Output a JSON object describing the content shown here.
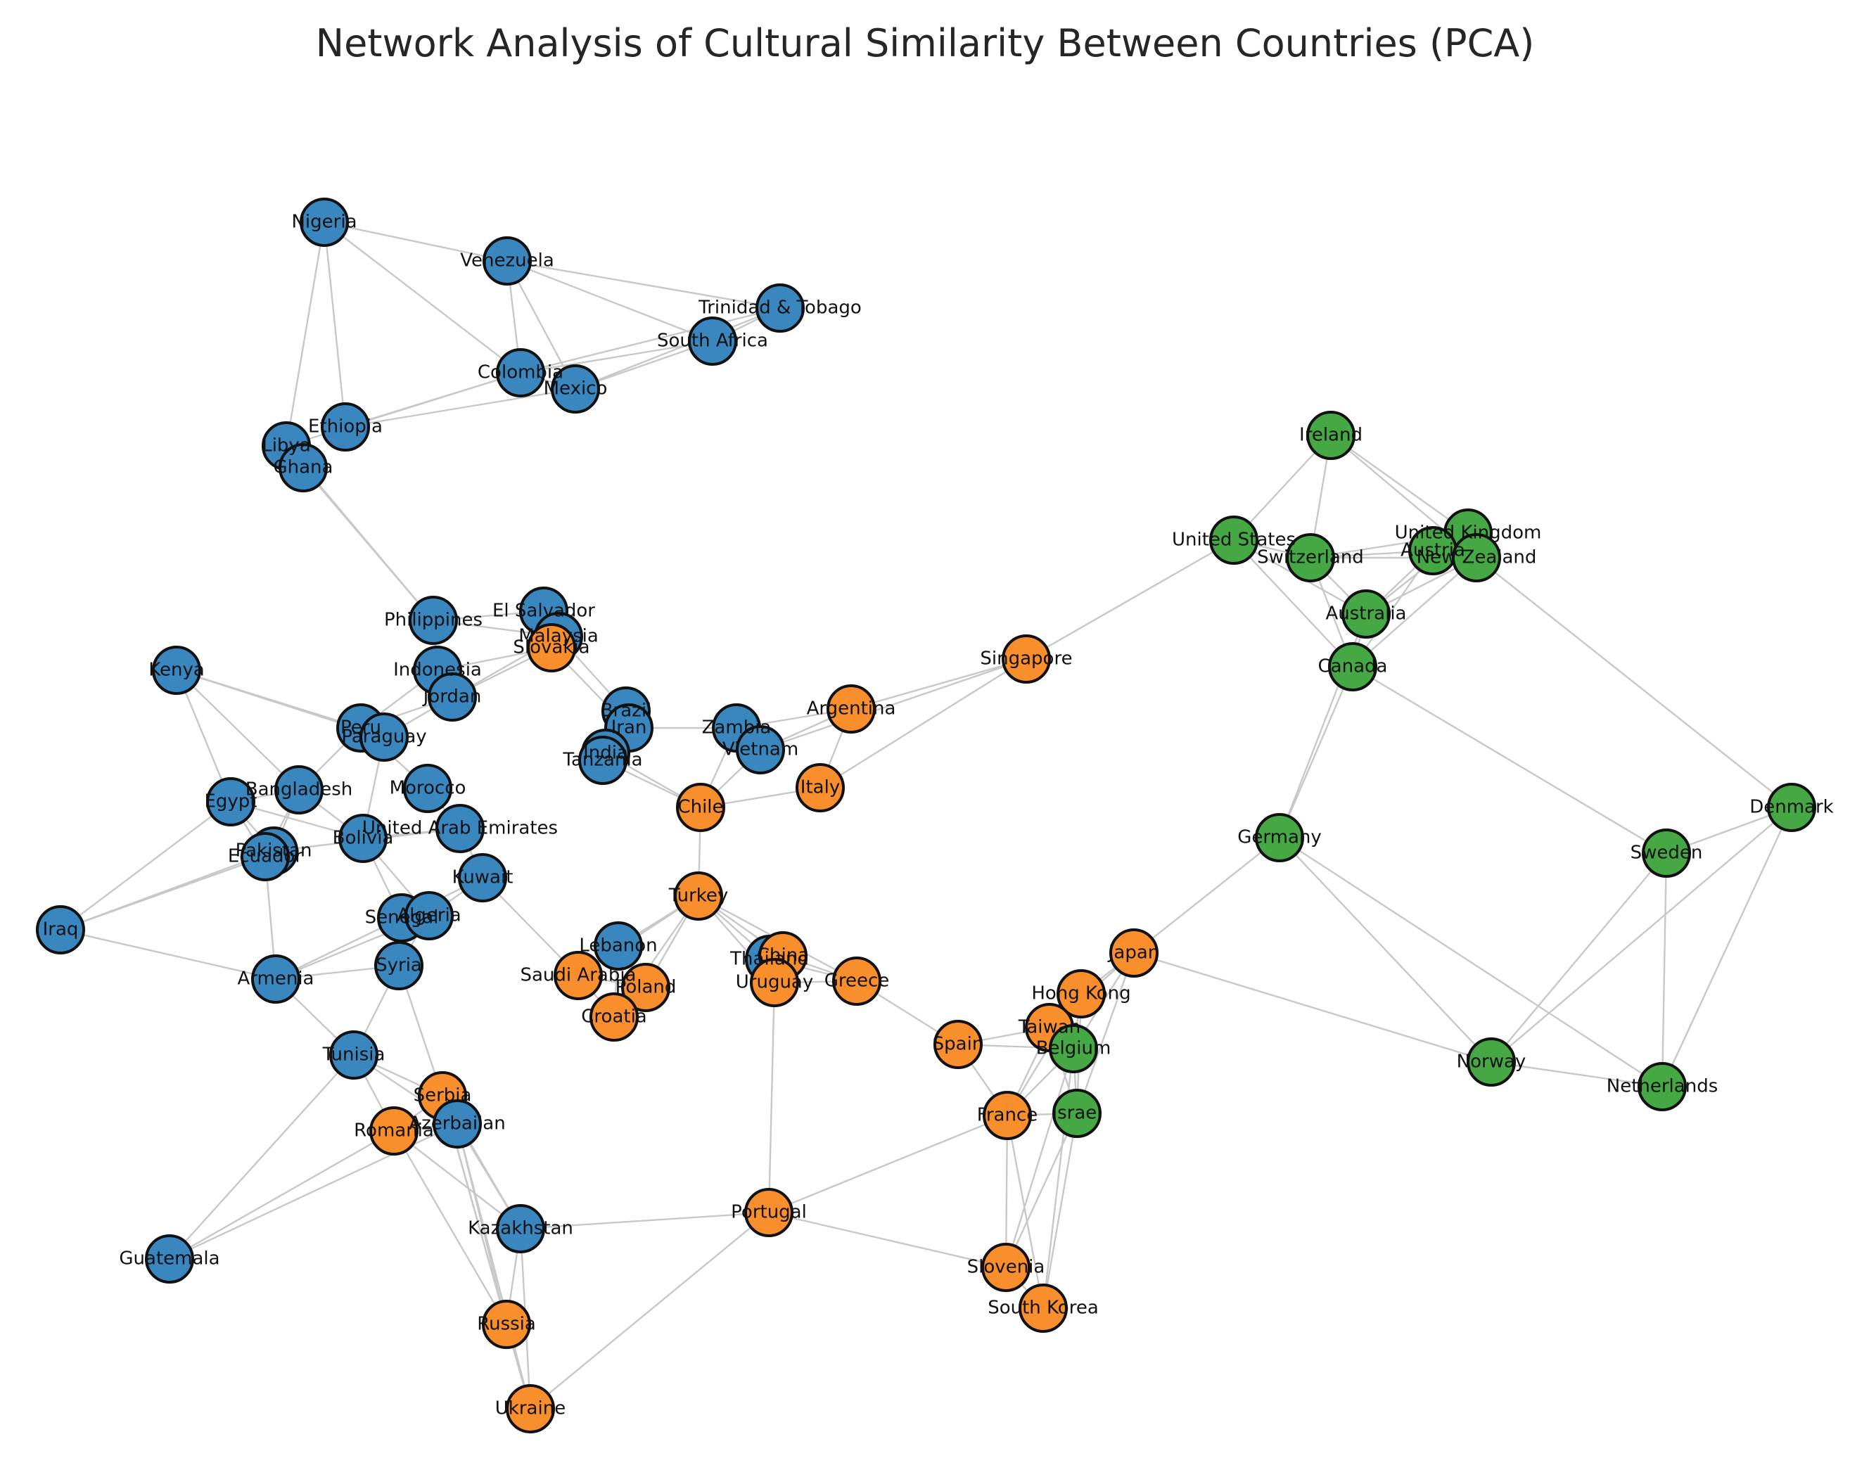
{
  "title": "Network Analysis of Cultural Similarity Between Countries (PCA)",
  "colors": {
    "0": "#3a86bf",
    "1": "#f98f2c",
    "2": "#46a845"
  },
  "chart_data": {
    "type": "network",
    "nodes": [
      {
        "id": "Nigeria",
        "group": 0
      },
      {
        "id": "Venezuela",
        "group": 0
      },
      {
        "id": "Trinidad & Tobago",
        "group": 0
      },
      {
        "id": "South Africa",
        "group": 0
      },
      {
        "id": "Colombia",
        "group": 0
      },
      {
        "id": "Mexico",
        "group": 0
      },
      {
        "id": "Ethiopia",
        "group": 0
      },
      {
        "id": "Libya",
        "group": 0
      },
      {
        "id": "Ghana",
        "group": 0
      },
      {
        "id": "Philippines",
        "group": 0
      },
      {
        "id": "El Salvador",
        "group": 0
      },
      {
        "id": "Malaysia",
        "group": 0
      },
      {
        "id": "Slovakia",
        "group": 1
      },
      {
        "id": "Kenya",
        "group": 0
      },
      {
        "id": "Indonesia",
        "group": 0
      },
      {
        "id": "Jordan",
        "group": 0
      },
      {
        "id": "Peru",
        "group": 0
      },
      {
        "id": "Paraguay",
        "group": 0
      },
      {
        "id": "Brazil",
        "group": 0
      },
      {
        "id": "Iran",
        "group": 0
      },
      {
        "id": "India",
        "group": 0
      },
      {
        "id": "Tanzania",
        "group": 0
      },
      {
        "id": "Zambia",
        "group": 0
      },
      {
        "id": "Vietnam",
        "group": 0
      },
      {
        "id": "Argentina",
        "group": 1
      },
      {
        "id": "Singapore",
        "group": 1
      },
      {
        "id": "Italy",
        "group": 1
      },
      {
        "id": "Chile",
        "group": 1
      },
      {
        "id": "Morocco",
        "group": 0
      },
      {
        "id": "Bangladesh",
        "group": 0
      },
      {
        "id": "Egypt",
        "group": 0
      },
      {
        "id": "United Arab Emirates",
        "group": 0
      },
      {
        "id": "Bolivia",
        "group": 0
      },
      {
        "id": "Pakistan",
        "group": 0
      },
      {
        "id": "Ecuador",
        "group": 0
      },
      {
        "id": "Kuwait",
        "group": 0
      },
      {
        "id": "Iraq",
        "group": 0
      },
      {
        "id": "Senegal",
        "group": 0
      },
      {
        "id": "Algeria",
        "group": 0
      },
      {
        "id": "Armenia",
        "group": 0
      },
      {
        "id": "Syria",
        "group": 0
      },
      {
        "id": "Turkey",
        "group": 1
      },
      {
        "id": "Lebanon",
        "group": 0
      },
      {
        "id": "Saudi Arabia",
        "group": 1
      },
      {
        "id": "Poland",
        "group": 1
      },
      {
        "id": "Croatia",
        "group": 1
      },
      {
        "id": "Thailand",
        "group": 0
      },
      {
        "id": "China",
        "group": 1
      },
      {
        "id": "Uruguay",
        "group": 1
      },
      {
        "id": "Greece",
        "group": 1
      },
      {
        "id": "Tunisia",
        "group": 0
      },
      {
        "id": "Serbia",
        "group": 1
      },
      {
        "id": "Romania",
        "group": 1
      },
      {
        "id": "Azerbaijan",
        "group": 0
      },
      {
        "id": "Kazakhstan",
        "group": 0
      },
      {
        "id": "Guatemala",
        "group": 0
      },
      {
        "id": "Russia",
        "group": 1
      },
      {
        "id": "Ukraine",
        "group": 1
      },
      {
        "id": "Portugal",
        "group": 1
      },
      {
        "id": "Spain",
        "group": 1
      },
      {
        "id": "Japan",
        "group": 1
      },
      {
        "id": "Hong Kong",
        "group": 1
      },
      {
        "id": "Taiwan",
        "group": 1
      },
      {
        "id": "Belgium",
        "group": 2
      },
      {
        "id": "France",
        "group": 1
      },
      {
        "id": "Israel",
        "group": 2
      },
      {
        "id": "Slovenia",
        "group": 1
      },
      {
        "id": "South Korea",
        "group": 1
      },
      {
        "id": "Ireland",
        "group": 2
      },
      {
        "id": "United States",
        "group": 2
      },
      {
        "id": "Switzerland",
        "group": 2
      },
      {
        "id": "United Kingdom",
        "group": 2
      },
      {
        "id": "Austria",
        "group": 2
      },
      {
        "id": "New Zealand",
        "group": 2
      },
      {
        "id": "Australia",
        "group": 2
      },
      {
        "id": "Canada",
        "group": 2
      },
      {
        "id": "Germany",
        "group": 2
      },
      {
        "id": "Denmark",
        "group": 2
      },
      {
        "id": "Sweden",
        "group": 2
      },
      {
        "id": "Norway",
        "group": 2
      },
      {
        "id": "Netherlands",
        "group": 2
      }
    ],
    "edges": [
      [
        "Nigeria",
        "Venezuela"
      ],
      [
        "Nigeria",
        "Colombia"
      ],
      [
        "Nigeria",
        "Ethiopia"
      ],
      [
        "Nigeria",
        "Libya"
      ],
      [
        "Venezuela",
        "Trinidad & Tobago"
      ],
      [
        "Venezuela",
        "Colombia"
      ],
      [
        "Venezuela",
        "Mexico"
      ],
      [
        "Venezuela",
        "South Africa"
      ],
      [
        "Trinidad & Tobago",
        "South Africa"
      ],
      [
        "Trinidad & Tobago",
        "Colombia"
      ],
      [
        "Trinidad & Tobago",
        "Mexico"
      ],
      [
        "South Africa",
        "Colombia"
      ],
      [
        "South Africa",
        "Mexico"
      ],
      [
        "Colombia",
        "Mexico"
      ],
      [
        "Colombia",
        "Ethiopia"
      ],
      [
        "Colombia",
        "Libya"
      ],
      [
        "Mexico",
        "Ethiopia"
      ],
      [
        "Libya",
        "Ghana"
      ],
      [
        "Ghana",
        "Philippines"
      ],
      [
        "Libya",
        "Philippines"
      ],
      [
        "Philippines",
        "El Salvador"
      ],
      [
        "Philippines",
        "Malaysia"
      ],
      [
        "Philippines",
        "Indonesia"
      ],
      [
        "El Salvador",
        "Malaysia"
      ],
      [
        "El Salvador",
        "Slovakia"
      ],
      [
        "Malaysia",
        "Slovakia"
      ],
      [
        "Malaysia",
        "Brazil"
      ],
      [
        "Slovakia",
        "Iran"
      ],
      [
        "Slovakia",
        "Indonesia"
      ],
      [
        "Slovakia",
        "Jordan"
      ],
      [
        "Malaysia",
        "Jordan"
      ],
      [
        "Kenya",
        "Peru"
      ],
      [
        "Kenya",
        "Paraguay"
      ],
      [
        "Kenya",
        "Egypt"
      ],
      [
        "Kenya",
        "Bangladesh"
      ],
      [
        "Indonesia",
        "Jordan"
      ],
      [
        "Indonesia",
        "Peru"
      ],
      [
        "Jordan",
        "Paraguay"
      ],
      [
        "Jordan",
        "Peru"
      ],
      [
        "Peru",
        "Paraguay"
      ],
      [
        "Peru",
        "Bangladesh"
      ],
      [
        "Paraguay",
        "Bolivia"
      ],
      [
        "Peru",
        "Morocco"
      ],
      [
        "Brazil",
        "Iran"
      ],
      [
        "Brazil",
        "India"
      ],
      [
        "Brazil",
        "Tanzania"
      ],
      [
        "Iran",
        "India"
      ],
      [
        "Iran",
        "Tanzania"
      ],
      [
        "India",
        "Tanzania"
      ],
      [
        "Iran",
        "Zambia"
      ],
      [
        "Zambia",
        "Vietnam"
      ],
      [
        "Zambia",
        "Chile"
      ],
      [
        "Vietnam",
        "Chile"
      ],
      [
        "Vietnam",
        "Argentina"
      ],
      [
        "Zambia",
        "Argentina"
      ],
      [
        "Tanzania",
        "Chile"
      ],
      [
        "India",
        "Chile"
      ],
      [
        "Argentina",
        "Singapore"
      ],
      [
        "Argentina",
        "Italy"
      ],
      [
        "Singapore",
        "Italy"
      ],
      [
        "Singapore",
        "Vietnam"
      ],
      [
        "Chile",
        "Italy"
      ],
      [
        "Singapore",
        "United States"
      ],
      [
        "Bangladesh",
        "Egypt"
      ],
      [
        "Bangladesh",
        "Pakistan"
      ],
      [
        "Bangladesh",
        "Ecuador"
      ],
      [
        "Bangladesh",
        "Bolivia"
      ],
      [
        "Egypt",
        "Pakistan"
      ],
      [
        "Egypt",
        "Ecuador"
      ],
      [
        "Egypt",
        "Iraq"
      ],
      [
        "Egypt",
        "Bolivia"
      ],
      [
        "Pakistan",
        "Ecuador"
      ],
      [
        "Ecuador",
        "Iraq"
      ],
      [
        "Pakistan",
        "Iraq"
      ],
      [
        "Pakistan",
        "United Arab Emirates"
      ],
      [
        "Bolivia",
        "United Arab Emirates"
      ],
      [
        "Bolivia",
        "Senegal"
      ],
      [
        "Bolivia",
        "Algeria"
      ],
      [
        "Morocco",
        "United Arab Emirates"
      ],
      [
        "United Arab Emirates",
        "Kuwait"
      ],
      [
        "Kuwait",
        "Algeria"
      ],
      [
        "Kuwait",
        "Senegal"
      ],
      [
        "Kuwait",
        "Saudi Arabia"
      ],
      [
        "Iraq",
        "Armenia"
      ],
      [
        "Ecuador",
        "Armenia"
      ],
      [
        "Senegal",
        "Algeria"
      ],
      [
        "Senegal",
        "Armenia"
      ],
      [
        "Algeria",
        "Armenia"
      ],
      [
        "Senegal",
        "Syria"
      ],
      [
        "Algeria",
        "Syria"
      ],
      [
        "Armenia",
        "Syria"
      ],
      [
        "Armenia",
        "Tunisia"
      ],
      [
        "Syria",
        "Tunisia"
      ],
      [
        "Syria",
        "Serbia"
      ],
      [
        "Chile",
        "Turkey"
      ],
      [
        "Turkey",
        "Lebanon"
      ],
      [
        "Turkey",
        "Saudi Arabia"
      ],
      [
        "Turkey",
        "Poland"
      ],
      [
        "Turkey",
        "Croatia"
      ],
      [
        "Turkey",
        "Thailand"
      ],
      [
        "Turkey",
        "China"
      ],
      [
        "Turkey",
        "Greece"
      ],
      [
        "Turkey",
        "Uruguay"
      ],
      [
        "Lebanon",
        "Saudi Arabia"
      ],
      [
        "Lebanon",
        "Poland"
      ],
      [
        "Lebanon",
        "Croatia"
      ],
      [
        "Saudi Arabia",
        "Poland"
      ],
      [
        "Saudi Arabia",
        "Croatia"
      ],
      [
        "Poland",
        "Croatia"
      ],
      [
        "Thailand",
        "China"
      ],
      [
        "Thailand",
        "Uruguay"
      ],
      [
        "China",
        "Uruguay"
      ],
      [
        "Thailand",
        "Greece"
      ],
      [
        "China",
        "Greece"
      ],
      [
        "Uruguay",
        "Greece"
      ],
      [
        "Uruguay",
        "Portugal"
      ],
      [
        "Greece",
        "Spain"
      ],
      [
        "Tunisia",
        "Serbia"
      ],
      [
        "Tunisia",
        "Romania"
      ],
      [
        "Tunisia",
        "Guatemala"
      ],
      [
        "Tunisia",
        "Azerbaijan"
      ],
      [
        "Serbia",
        "Romania"
      ],
      [
        "Serbia",
        "Azerbaijan"
      ],
      [
        "Serbia",
        "Kazakhstan"
      ],
      [
        "Serbia",
        "Russia"
      ],
      [
        "Serbia",
        "Ukraine"
      ],
      [
        "Romania",
        "Azerbaijan"
      ],
      [
        "Romania",
        "Guatemala"
      ],
      [
        "Romania",
        "Kazakhstan"
      ],
      [
        "Romania",
        "Russia"
      ],
      [
        "Azerbaijan",
        "Guatemala"
      ],
      [
        "Azerbaijan",
        "Kazakhstan"
      ],
      [
        "Azerbaijan",
        "Russia"
      ],
      [
        "Azerbaijan",
        "Ukraine"
      ],
      [
        "Kazakhstan",
        "Russia"
      ],
      [
        "Kazakhstan",
        "Ukraine"
      ],
      [
        "Kazakhstan",
        "Portugal"
      ],
      [
        "Russia",
        "Ukraine"
      ],
      [
        "Portugal",
        "Ukraine"
      ],
      [
        "Portugal",
        "France"
      ],
      [
        "Portugal",
        "Slovenia"
      ],
      [
        "Spain",
        "Taiwan"
      ],
      [
        "Spain",
        "Belgium"
      ],
      [
        "Spain",
        "France"
      ],
      [
        "Japan",
        "Germany"
      ],
      [
        "Japan",
        "Hong Kong"
      ],
      [
        "Japan",
        "Taiwan"
      ],
      [
        "Japan",
        "Belgium"
      ],
      [
        "Japan",
        "Norway"
      ],
      [
        "Japan",
        "Israel"
      ],
      [
        "Hong Kong",
        "Taiwan"
      ],
      [
        "Hong Kong",
        "Belgium"
      ],
      [
        "Hong Kong",
        "France"
      ],
      [
        "Hong Kong",
        "Israel"
      ],
      [
        "Taiwan",
        "Belgium"
      ],
      [
        "Taiwan",
        "France"
      ],
      [
        "Taiwan",
        "Israel"
      ],
      [
        "Belgium",
        "France"
      ],
      [
        "Belgium",
        "Israel"
      ],
      [
        "Belgium",
        "Slovenia"
      ],
      [
        "Belgium",
        "South Korea"
      ],
      [
        "France",
        "Israel"
      ],
      [
        "France",
        "Slovenia"
      ],
      [
        "France",
        "South Korea"
      ],
      [
        "Israel",
        "Slovenia"
      ],
      [
        "Israel",
        "South Korea"
      ],
      [
        "Slovenia",
        "South Korea"
      ],
      [
        "Ireland",
        "United States"
      ],
      [
        "Ireland",
        "Switzerland"
      ],
      [
        "Ireland",
        "United Kingdom"
      ],
      [
        "Ireland",
        "New Zealand"
      ],
      [
        "United States",
        "Switzerland"
      ],
      [
        "United States",
        "Australia"
      ],
      [
        "United States",
        "Canada"
      ],
      [
        "Switzerland",
        "Austria"
      ],
      [
        "Switzerland",
        "United Kingdom"
      ],
      [
        "Switzerland",
        "New Zealand"
      ],
      [
        "Switzerland",
        "Australia"
      ],
      [
        "Switzerland",
        "Canada"
      ],
      [
        "United Kingdom",
        "Austria"
      ],
      [
        "United Kingdom",
        "New Zealand"
      ],
      [
        "United Kingdom",
        "Australia"
      ],
      [
        "Austria",
        "New Zealand"
      ],
      [
        "Austria",
        "Australia"
      ],
      [
        "Austria",
        "Canada"
      ],
      [
        "New Zealand",
        "Australia"
      ],
      [
        "New Zealand",
        "Canada"
      ],
      [
        "New Zealand",
        "Denmark"
      ],
      [
        "Australia",
        "Canada"
      ],
      [
        "Canada",
        "Germany"
      ],
      [
        "Canada",
        "Sweden"
      ],
      [
        "Australia",
        "Germany"
      ],
      [
        "Germany",
        "Norway"
      ],
      [
        "Germany",
        "Netherlands"
      ],
      [
        "Denmark",
        "Sweden"
      ],
      [
        "Denmark",
        "Norway"
      ],
      [
        "Denmark",
        "Netherlands"
      ],
      [
        "Sweden",
        "Norway"
      ],
      [
        "Sweden",
        "Netherlands"
      ],
      [
        "Norway",
        "Netherlands"
      ]
    ]
  }
}
